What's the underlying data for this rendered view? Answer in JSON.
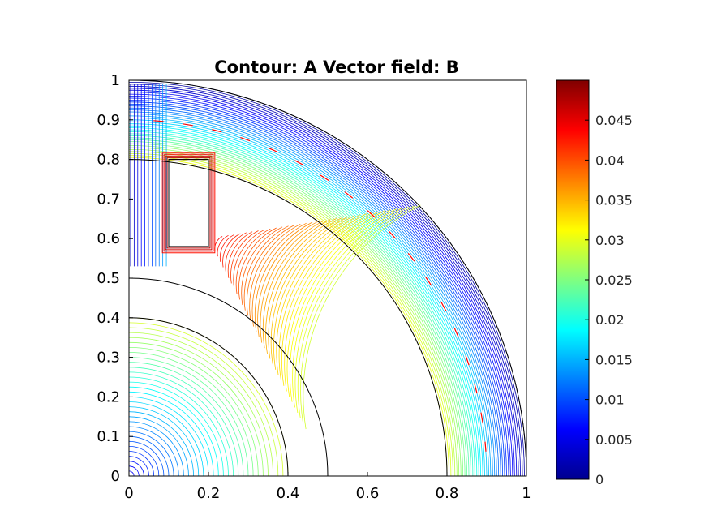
{
  "chart_data": {
    "type": "contour",
    "title": "Contour: A  Vector field: B",
    "xlabel": "",
    "ylabel": "",
    "xlim": [
      0,
      1
    ],
    "ylim": [
      0,
      1
    ],
    "x_ticks": [
      "0",
      "0.2",
      "0.4",
      "0.6",
      "0.8",
      "1"
    ],
    "y_ticks": [
      "0",
      "0.1",
      "0.2",
      "0.3",
      "0.4",
      "0.5",
      "0.6",
      "0.7",
      "0.8",
      "0.9",
      "1"
    ],
    "colormap": "jet",
    "colorbar_range": [
      0,
      0.05
    ],
    "colorbar_ticks": [
      "0",
      "0.005",
      "0.01",
      "0.015",
      "0.02",
      "0.025",
      "0.03",
      "0.035",
      "0.04",
      "0.045"
    ],
    "vector_color": "#ff0000",
    "geometry": {
      "inner_quarter_circle_radius": 0.4,
      "rotor_outer_radius": 0.5,
      "stator_inner_radius": 0.8,
      "stator_outer_radius": 1.0,
      "coil_rect": [
        0.1,
        0.58,
        0.2,
        0.8
      ]
    }
  }
}
